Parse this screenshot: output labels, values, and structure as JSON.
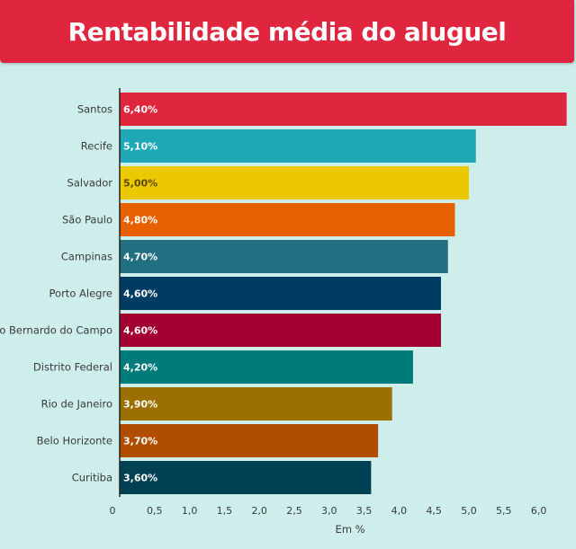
{
  "header": {
    "title": "Rentabilidade média do aluguel"
  },
  "chart_data": {
    "type": "bar",
    "orientation": "horizontal",
    "title": "Rentabilidade média do aluguel",
    "xlabel": "Em %",
    "ylabel": "",
    "xlim": [
      0,
      6.4
    ],
    "x_ticks": [
      {
        "value": 0,
        "label": "0"
      },
      {
        "value": 0.5,
        "label": "0,5"
      },
      {
        "value": 1.0,
        "label": "1,0"
      },
      {
        "value": 1.5,
        "label": "1,5"
      },
      {
        "value": 2.0,
        "label": "2,0"
      },
      {
        "value": 2.5,
        "label": "2,5"
      },
      {
        "value": 3.0,
        "label": "3,0"
      },
      {
        "value": 3.5,
        "label": "3,5"
      },
      {
        "value": 4.0,
        "label": "4,0"
      },
      {
        "value": 4.5,
        "label": "4,5"
      },
      {
        "value": 5.0,
        "label": "5,0"
      },
      {
        "value": 5.5,
        "label": "5,5"
      },
      {
        "value": 6.0,
        "label": "6,0"
      }
    ],
    "grid": false,
    "categories": [
      "Santos",
      "Recife",
      "Salvador",
      "São Paulo",
      "Campinas",
      "Porto Alegre",
      "São Bernardo do Campo",
      "Distrito Federal",
      "Rio de Janeiro",
      "Belo Horizonte",
      "Curitiba"
    ],
    "values": [
      6.4,
      5.1,
      5.0,
      4.8,
      4.7,
      4.6,
      4.6,
      4.2,
      3.9,
      3.7,
      3.6
    ],
    "value_labels": [
      "6,40%",
      "5,10%",
      "5,00%",
      "4,80%",
      "4,70%",
      "4,60%",
      "4,60%",
      "4,20%",
      "3,90%",
      "3,70%",
      "3,60%"
    ],
    "colors": [
      "#e0253f",
      "#20a8b8",
      "#ecc800",
      "#e86100",
      "#236f82",
      "#003b63",
      "#a10030",
      "#007b7b",
      "#9b7000",
      "#b14d00",
      "#004254"
    ],
    "label_colors": [
      "#ffffff",
      "#ffffff",
      "#5a4a00",
      "#ffffff",
      "#ffffff",
      "#ffffff",
      "#ffffff",
      "#ffffff",
      "#ffffff",
      "#ffffff",
      "#ffffff"
    ]
  }
}
